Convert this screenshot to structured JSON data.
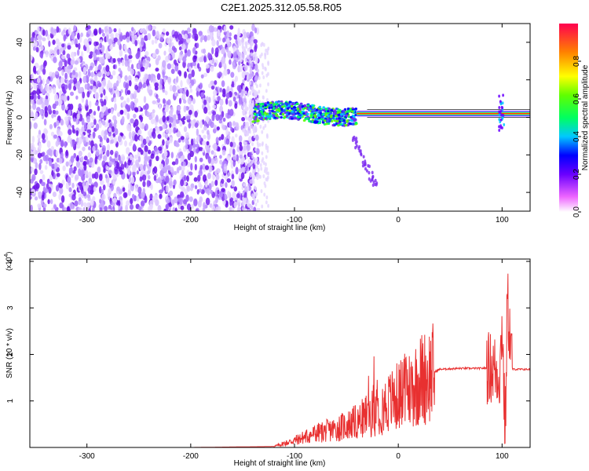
{
  "title": "C2E1.2025.312.05.58.R05",
  "top_panel": {
    "xlabel": "Height of straight line (km)",
    "ylabel": "Frequency (Hz)",
    "xlim": [
      -355,
      127
    ],
    "ylim": [
      -50,
      50
    ],
    "xticks": [
      "-300",
      "-200",
      "-100",
      "0",
      "100"
    ],
    "yticks": [
      "40",
      "20",
      "0",
      "-20",
      "-40"
    ],
    "colorbar": {
      "label": "Normalized spectral amplitude",
      "ticks": [
        "0.0",
        "0.2",
        "0.4",
        "0.6",
        "0.8"
      ],
      "range": [
        0,
        1
      ]
    }
  },
  "bottom_panel": {
    "xlabel": "Height of straight line (km)",
    "ylabel": "SNR (10 * v/v)",
    "multiplier": "(x10",
    "multiplier_exp": "4",
    "multiplier_close": ")",
    "xlim": [
      -355,
      127
    ],
    "ylim": [
      0,
      4.05
    ],
    "xticks": [
      "-300",
      "-200",
      "-100",
      "0",
      "100"
    ],
    "yticks": [
      "4",
      "3",
      "2",
      "1"
    ]
  },
  "chart_data": [
    {
      "type": "heatmap",
      "description_series": "spectrogram",
      "x_range": [
        -355,
        127
      ],
      "y_range": [
        -50,
        50
      ],
      "features": [
        {
          "segment": "noise",
          "x": [
            -355,
            -135
          ],
          "y": [
            -50,
            48
          ]
        },
        {
          "segment": "signal_onset",
          "x": [
            -140,
            -40
          ],
          "y": [
            -3,
            8
          ]
        },
        {
          "segment": "stable_tone",
          "x": [
            -40,
            127
          ],
          "freq": 2
        }
      ],
      "ticks_x": [
        -300,
        -200,
        -100,
        0,
        100
      ],
      "ticks_y": [
        40,
        20,
        0,
        -20,
        -40
      ]
    },
    {
      "type": "line",
      "color": "#e83030",
      "x_range": [
        -355,
        127
      ],
      "y_range": [
        0,
        4.05
      ],
      "x": [
        -355,
        -200,
        -120,
        -100,
        -80,
        -60,
        -40,
        -20,
        0,
        10,
        20,
        40,
        60,
        80,
        90,
        98,
        100,
        103,
        105,
        110,
        127
      ],
      "y": [
        0.0,
        0.0,
        0.02,
        0.15,
        0.3,
        0.4,
        0.55,
        0.8,
        1.1,
        1.25,
        1.45,
        1.68,
        1.7,
        1.7,
        1.72,
        1.6,
        2.8,
        0.2,
        3.2,
        1.68,
        1.68
      ]
    }
  ]
}
